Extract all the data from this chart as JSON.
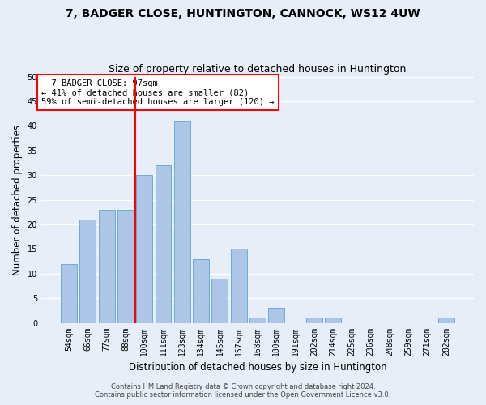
{
  "title": "7, BADGER CLOSE, HUNTINGTON, CANNOCK, WS12 4UW",
  "subtitle": "Size of property relative to detached houses in Huntington",
  "xlabel": "Distribution of detached houses by size in Huntington",
  "ylabel": "Number of detached properties",
  "bar_labels": [
    "54sqm",
    "66sqm",
    "77sqm",
    "88sqm",
    "100sqm",
    "111sqm",
    "123sqm",
    "134sqm",
    "145sqm",
    "157sqm",
    "168sqm",
    "180sqm",
    "191sqm",
    "202sqm",
    "214sqm",
    "225sqm",
    "236sqm",
    "248sqm",
    "259sqm",
    "271sqm",
    "282sqm"
  ],
  "bar_values": [
    12,
    21,
    23,
    23,
    30,
    32,
    41,
    13,
    9,
    15,
    1,
    3,
    0,
    1,
    1,
    0,
    0,
    0,
    0,
    0,
    1
  ],
  "bar_color": "#adc6e8",
  "bar_edgecolor": "#6bacd6",
  "background_color": "#e8eef8",
  "grid_color": "#ffffff",
  "vline_x": 3.5,
  "vline_color": "red",
  "annotation_text": "  7 BADGER CLOSE: 97sqm  \n← 41% of detached houses are smaller (82)\n59% of semi-detached houses are larger (120) →",
  "annotation_box_color": "white",
  "annotation_box_edgecolor": "red",
  "ylim": [
    0,
    50
  ],
  "yticks": [
    0,
    5,
    10,
    15,
    20,
    25,
    30,
    35,
    40,
    45,
    50
  ],
  "footer1": "Contains HM Land Registry data © Crown copyright and database right 2024.",
  "footer2": "Contains public sector information licensed under the Open Government Licence v3.0.",
  "title_fontsize": 10,
  "subtitle_fontsize": 9,
  "tick_fontsize": 7,
  "ylabel_fontsize": 8.5,
  "xlabel_fontsize": 8.5,
  "annotation_fontsize": 7.5
}
